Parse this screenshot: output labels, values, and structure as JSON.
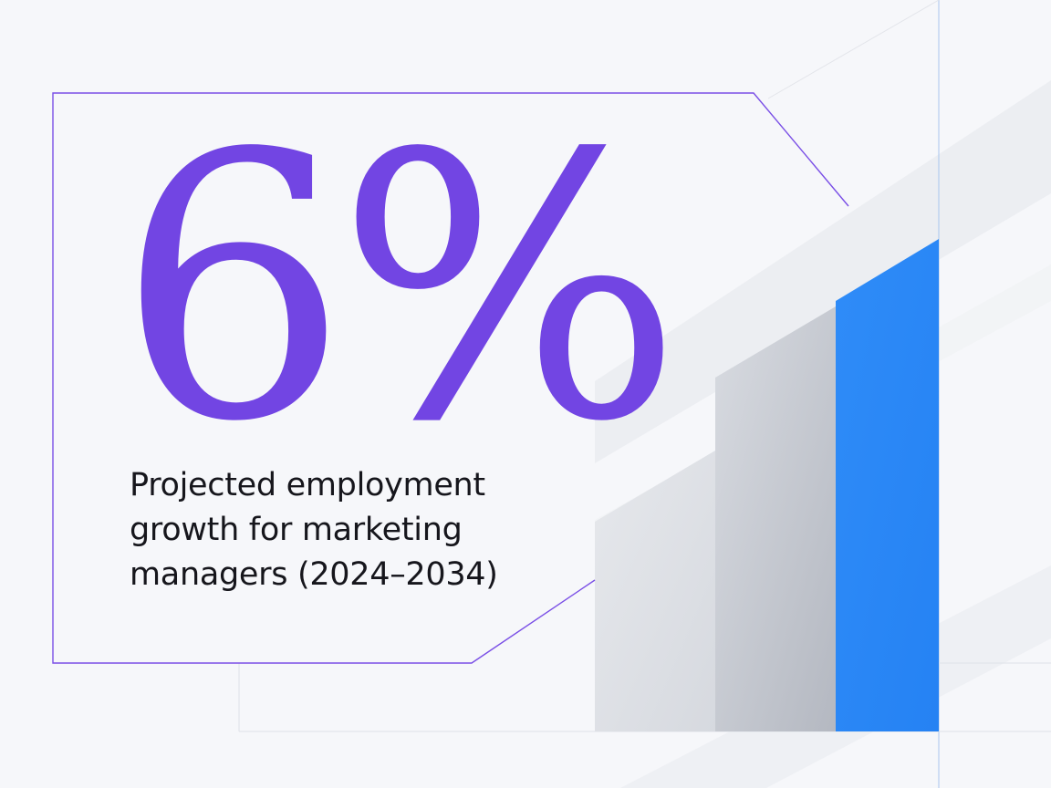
{
  "stat": {
    "value": "6%",
    "caption": "Projected employment growth for marketing managers (2024–2034)"
  },
  "colors": {
    "accent_purple": "#7245e3",
    "accent_blue": "#2a88f7",
    "bar_gray": "#c7cad1",
    "background": "#f6f7fa",
    "text": "#16161c"
  }
}
